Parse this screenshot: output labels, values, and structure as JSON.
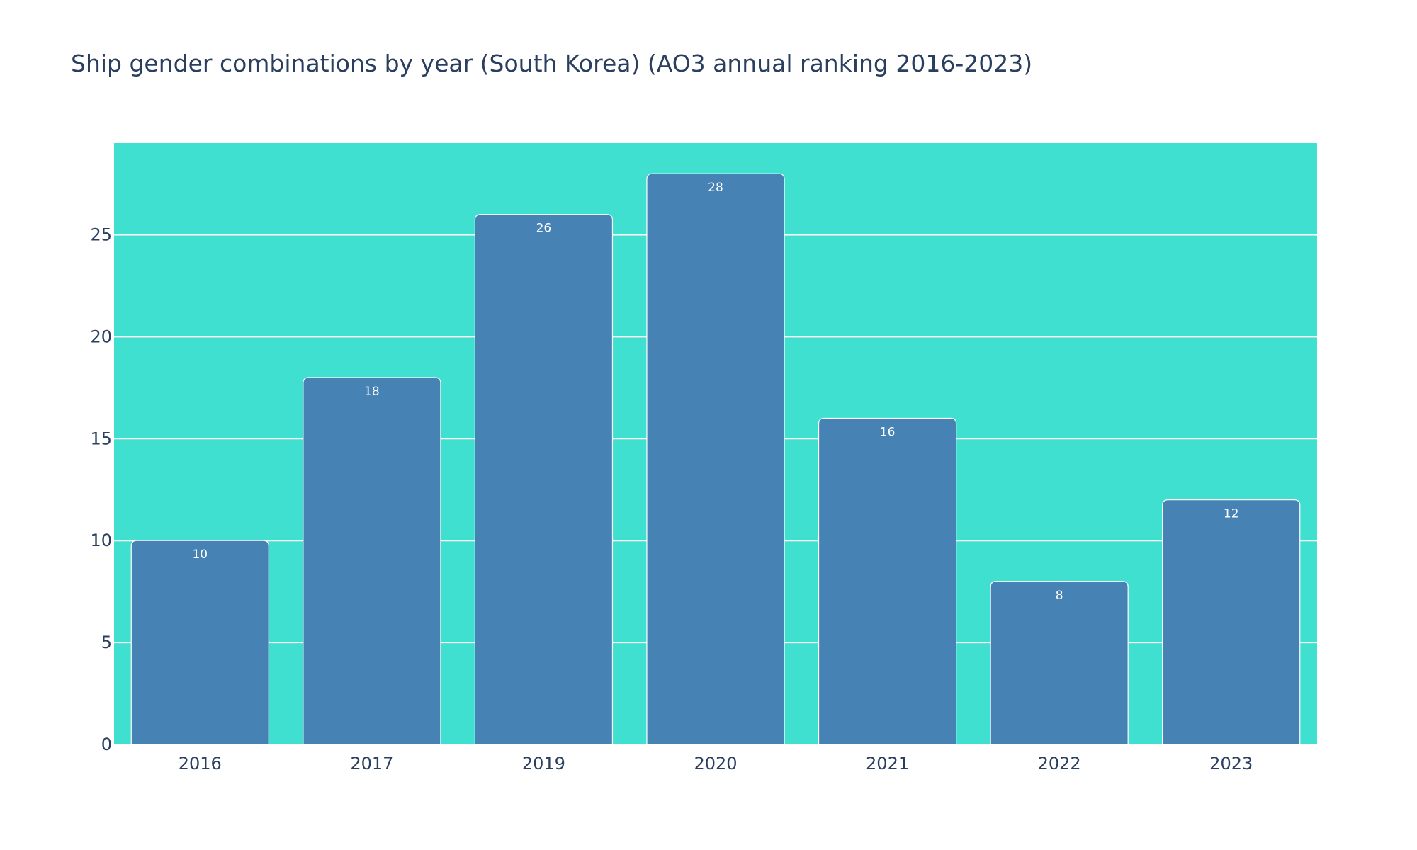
{
  "chart_data": {
    "type": "bar",
    "title": "Ship gender combinations by year (South Korea) (AO3 annual ranking 2016-2023)",
    "xlabel": "",
    "ylabel": "",
    "categories": [
      "2016",
      "2017",
      "2019",
      "2020",
      "2021",
      "2022",
      "2023"
    ],
    "values": [
      10,
      18,
      26,
      28,
      16,
      8,
      12
    ],
    "ylim": [
      0,
      29.5
    ],
    "yticks": [
      0,
      5,
      10,
      15,
      20,
      25
    ],
    "grid": true,
    "legend": "none",
    "colors": {
      "plot_background": "#40e0d0",
      "bar_fill": "#4682b4",
      "bar_outline": "#ffffff",
      "text": "#2a3f5f",
      "bar_label_text": "#ffffff"
    }
  }
}
